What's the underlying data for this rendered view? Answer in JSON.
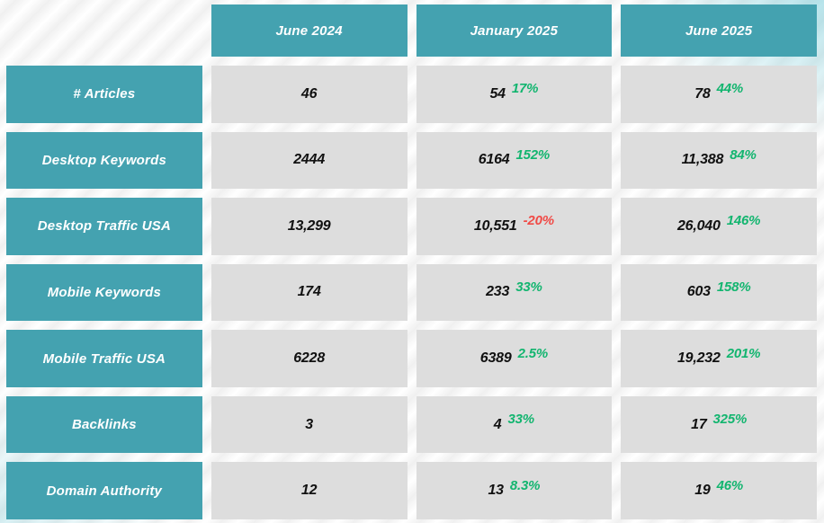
{
  "colors": {
    "accent": "#44A2B0",
    "cell_bg": "#DDDDDD",
    "header_text": "#FFFFFF",
    "value_text": "#111111",
    "positive": "#12B56F",
    "negative": "#F04A46"
  },
  "chart_data": {
    "type": "table",
    "columns": [
      "June 2024",
      "January 2025",
      "June 2025"
    ],
    "rows": [
      {
        "label": "# Articles",
        "values": [
          {
            "text": "46"
          },
          {
            "text": "54",
            "change": "17%",
            "trend": "up"
          },
          {
            "text": "78",
            "change": "44%",
            "trend": "up"
          }
        ]
      },
      {
        "label": "Desktop Keywords",
        "values": [
          {
            "text": "2444"
          },
          {
            "text": "6164",
            "change": "152%",
            "trend": "up"
          },
          {
            "text": "11,388",
            "change": "84%",
            "trend": "up"
          }
        ]
      },
      {
        "label": "Desktop Traffic USA",
        "values": [
          {
            "text": "13,299"
          },
          {
            "text": "10,551",
            "change": "-20%",
            "trend": "down"
          },
          {
            "text": "26,040",
            "change": "146%",
            "trend": "up"
          }
        ]
      },
      {
        "label": "Mobile Keywords",
        "values": [
          {
            "text": "174"
          },
          {
            "text": "233",
            "change": "33%",
            "trend": "up"
          },
          {
            "text": "603",
            "change": "158%",
            "trend": "up"
          }
        ]
      },
      {
        "label": "Mobile Traffic USA",
        "values": [
          {
            "text": "6228"
          },
          {
            "text": "6389",
            "change": "2.5%",
            "trend": "up"
          },
          {
            "text": "19,232",
            "change": "201%",
            "trend": "up"
          }
        ]
      },
      {
        "label": "Backlinks",
        "values": [
          {
            "text": "3"
          },
          {
            "text": "4",
            "change": "33%",
            "trend": "up"
          },
          {
            "text": "17",
            "change": "325%",
            "trend": "up"
          }
        ]
      },
      {
        "label": "Domain Authority",
        "values": [
          {
            "text": "12"
          },
          {
            "text": "13",
            "change": "8.3%",
            "trend": "up"
          },
          {
            "text": "19",
            "change": "46%",
            "trend": "up"
          }
        ]
      }
    ]
  }
}
